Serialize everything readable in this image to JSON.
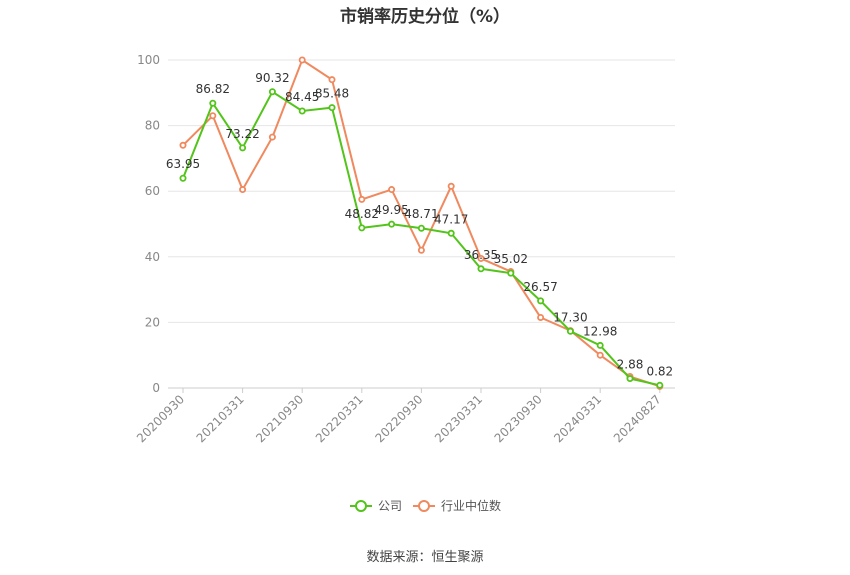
{
  "chart_data": {
    "type": "line",
    "title": "市销率历史分位（%）",
    "source": "数据来源：恒生聚源",
    "ylim": [
      0,
      100
    ],
    "yticks": [
      0,
      20,
      40,
      60,
      80,
      100
    ],
    "xtick_labels": [
      "20200930",
      "20210331",
      "20210930",
      "20220331",
      "20220930",
      "20230331",
      "20230930",
      "20240331",
      "20240827"
    ],
    "legend_position": "bottom-center",
    "grid": true,
    "series": [
      {
        "name": "公司",
        "color": "#52c41a",
        "values": [
          63.95,
          86.82,
          73.22,
          90.32,
          84.45,
          85.48,
          48.82,
          49.95,
          48.71,
          47.17,
          36.35,
          35.02,
          26.57,
          17.3,
          12.98,
          2.88,
          0.82
        ],
        "labels": [
          "63.95",
          "86.82",
          "73.22",
          "90.32",
          "84.45",
          "85.48",
          "48.82",
          "49.95",
          "48.71",
          "47.17",
          "36.35",
          "35.02",
          "26.57",
          "17.30",
          "12.98",
          "2.88",
          "0.82"
        ]
      },
      {
        "name": "行业中位数",
        "color": "#f0895e",
        "values": [
          74,
          83,
          60.5,
          76.5,
          100,
          94,
          57.5,
          60.5,
          42,
          61.5,
          39.5,
          35.5,
          21.5,
          17.5,
          10,
          3.5,
          0.5
        ]
      }
    ]
  }
}
